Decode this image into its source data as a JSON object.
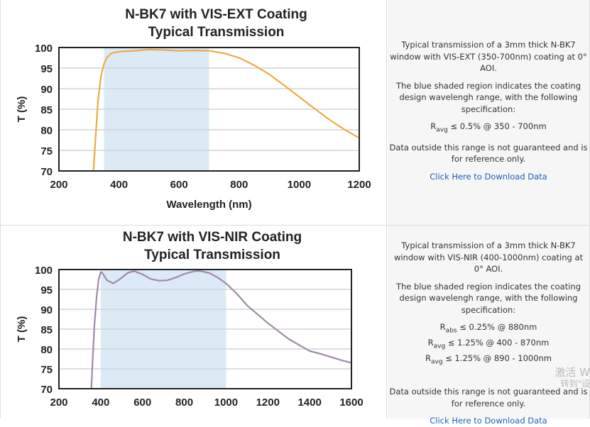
{
  "chart_data": [
    {
      "type": "line",
      "title": [
        "N-BK7 with VIS-EXT Coating",
        "Typical Transmission"
      ],
      "xlabel": "Wavelength (nm)",
      "ylabel": "T (%)",
      "xlim": [
        200,
        1200
      ],
      "ylim": [
        70,
        100
      ],
      "xticks": [
        200,
        400,
        600,
        800,
        1000,
        1200
      ],
      "yticks": [
        70,
        75,
        80,
        85,
        90,
        95,
        100
      ],
      "shaded_range": [
        350,
        700
      ],
      "grid": true,
      "line_color": "#f0a848",
      "shade_color": "#dceaf6",
      "x": [
        315,
        322,
        330,
        340,
        350,
        360,
        375,
        400,
        450,
        500,
        550,
        600,
        650,
        700,
        750,
        800,
        850,
        900,
        950,
        1000,
        1050,
        1100,
        1150,
        1200
      ],
      "y": [
        70,
        78,
        87,
        93,
        96,
        97.6,
        98.6,
        99,
        99.2,
        99.5,
        99.4,
        99.2,
        99.3,
        99.2,
        98.6,
        97.5,
        95.7,
        93.5,
        90.8,
        88,
        85.2,
        82.5,
        80.1,
        78
      ]
    },
    {
      "type": "line",
      "title": [
        "N-BK7 with VIS-NIR Coating",
        "Typical Transmission"
      ],
      "xlabel": "",
      "ylabel": "T (%)",
      "xlim": [
        200,
        1600
      ],
      "ylim": [
        70,
        100
      ],
      "xticks": [
        200,
        400,
        600,
        800,
        1000,
        1200,
        1400,
        1600
      ],
      "yticks": [
        70,
        75,
        80,
        85,
        90,
        95,
        100
      ],
      "shaded_range": [
        400,
        1000
      ],
      "grid": true,
      "line_color": "#a08aa8",
      "shade_color": "#dceaf6",
      "x": [
        355,
        362,
        370,
        380,
        390,
        400,
        410,
        430,
        460,
        490,
        530,
        560,
        600,
        640,
        680,
        720,
        760,
        800,
        850,
        880,
        920,
        960,
        1000,
        1050,
        1100,
        1200,
        1300,
        1350,
        1400,
        1450,
        1500,
        1550,
        1600
      ],
      "y": [
        70,
        78,
        86,
        93,
        97.5,
        99.4,
        99,
        97.3,
        96.5,
        97.5,
        99.2,
        99.6,
        98.8,
        97.6,
        97.2,
        97.3,
        98,
        98.9,
        99.6,
        99.6,
        99.1,
        98,
        96.5,
        94,
        91,
        86.5,
        82.5,
        81,
        79.5,
        78.8,
        78,
        77.2,
        76.5
      ]
    }
  ],
  "info": [
    {
      "paragraphs": [
        "Typical transmission of a 3mm thick N-BK7 window with VIS-EXT (350-700nm) coating at 0° AOI.",
        "The blue shaded region indicates the coating design wavelengh range, with the following specification:"
      ],
      "specs": [
        {
          "sym": "R",
          "sub": "avg",
          "text": " ≤ 0.5% @ 350 - 700nm"
        }
      ],
      "note": "Data outside this range is not guaranteed and is for reference only.",
      "link": "Click Here to Download Data"
    },
    {
      "paragraphs": [
        "Typical transmission of a 3mm thick N-BK7 window with VIS-NIR (400-1000nm) coating at 0° AOI.",
        "The blue shaded region indicates the coating design wavelengh range, with the following specification:"
      ],
      "specs": [
        {
          "sym": "R",
          "sub": "abs",
          "text": " ≤ 0.25% @ 880nm"
        },
        {
          "sym": "R",
          "sub": "avg",
          "text": " ≤ 1.25% @ 400 - 870nm"
        },
        {
          "sym": "R",
          "sub": "avg",
          "text": " ≤ 1.25% @ 890 - 1000nm"
        }
      ],
      "note": "Data outside this range is not guaranteed and is for reference only.",
      "link": "Click Here to Download Data"
    }
  ],
  "watermark": [
    "激活 W",
    "转到\"设"
  ]
}
